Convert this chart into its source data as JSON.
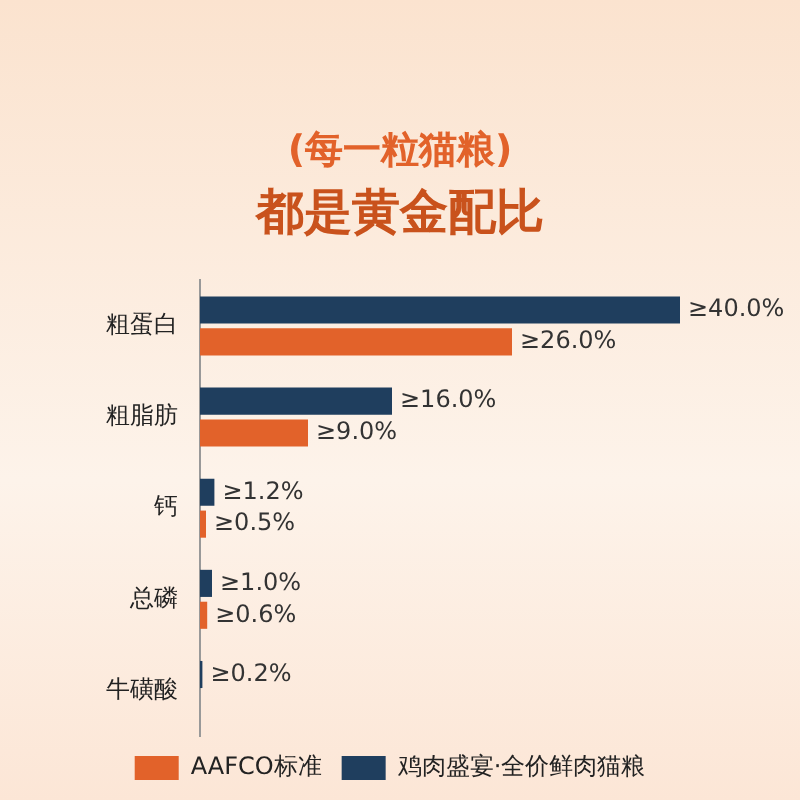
{
  "chart_data": {
    "type": "bar",
    "orientation": "horizontal",
    "title": "(每一粒猫粮)",
    "subtitle": "都是黄金配比",
    "categories": [
      "粗蛋白",
      "粗脂肪",
      "钙",
      "总磷",
      "牛磺酸"
    ],
    "series": [
      {
        "name": "鸡肉盛宴·全价鲜肉猫粮",
        "color": "#1f3e5e",
        "values": [
          40.0,
          16.0,
          1.2,
          1.0,
          0.2
        ],
        "value_labels": [
          "≥40.0%",
          "≥16.0%",
          "≥1.2%",
          "≥1.0%",
          "≥0.2%"
        ]
      },
      {
        "name": "AAFCO标准",
        "color": "#e2622a",
        "values": [
          26.0,
          9.0,
          0.5,
          0.6,
          null
        ],
        "value_labels": [
          "≥26.0%",
          "≥9.0%",
          "≥0.5%",
          "≥0.6%",
          null
        ]
      }
    ],
    "legend": "bottom",
    "grid": false,
    "tick_labels": "y"
  }
}
